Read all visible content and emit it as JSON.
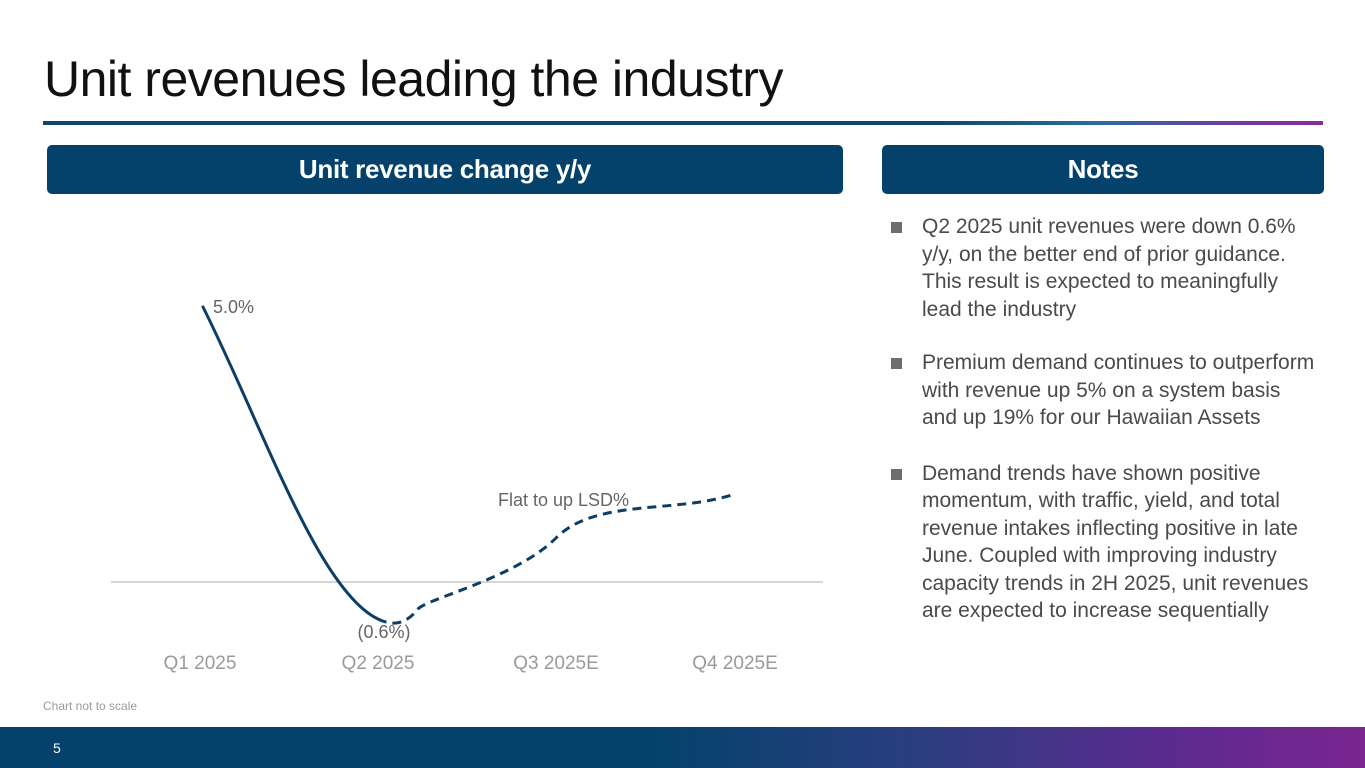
{
  "slide": {
    "title": "Unit revenues leading the industry",
    "page_number": "5",
    "footnote": "Chart not to scale"
  },
  "chart_panel": {
    "header": "Unit revenue change y/y"
  },
  "notes_panel": {
    "header": "Notes",
    "items": [
      "Q2 2025 unit revenues were down 0.6% y/y, on the better end of prior guidance. This result is expected to meaningfully lead the industry",
      "Premium demand continues to outperform with revenue up 5% on a system basis and up 19% for our Hawaiian Assets",
      "Demand trends have shown positive momentum, with traffic, yield, and total revenue intakes inflecting positive in late June. Coupled with improving industry capacity trends in 2H 2025, unit revenues are expected to increase sequentially"
    ]
  },
  "colors": {
    "navy": "#04426b",
    "line": "#0d3e66",
    "accent_purple": "#7a2590",
    "axis_text": "#9a9a9a"
  },
  "chart_data": {
    "type": "line",
    "title": "Unit revenue change y/y",
    "categories": [
      "Q1 2025",
      "Q2 2025",
      "Q3 2025E",
      "Q4 2025E"
    ],
    "series": [
      {
        "values": [
          5.0,
          -0.6,
          null,
          null
        ],
        "style": "solid"
      },
      {
        "values": [
          null,
          -0.6,
          0.8,
          1.6
        ],
        "style": "dashed",
        "is_outlook": true
      }
    ],
    "data_labels": [
      {
        "category": "Q1 2025",
        "text": "5.0%"
      },
      {
        "category": "Q2 2025",
        "text": "(0.6%)"
      },
      {
        "category": "Q3 2025E",
        "text": "Flat to up LSD%"
      }
    ],
    "baseline": 0,
    "note": "Chart not to scale"
  }
}
